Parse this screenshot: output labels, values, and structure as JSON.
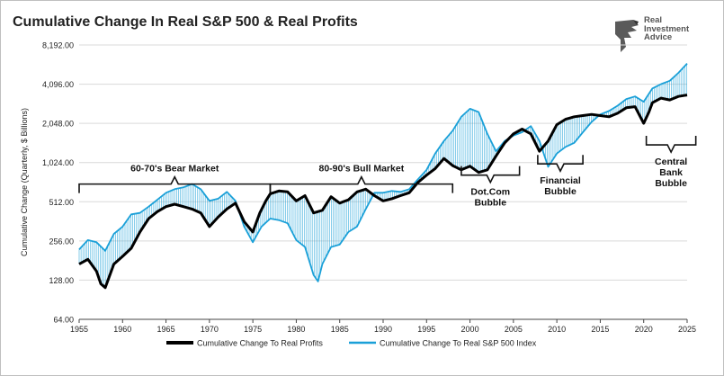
{
  "title": "Cumulative Change In Real S&P 500 & Real Profits",
  "logo": {
    "line1": "Real",
    "line2": "Investment",
    "line3": "Advice"
  },
  "colors": {
    "profits": "#000000",
    "sp500": "#1aa0d8",
    "fill": "#1aa0d8"
  },
  "chart_data": {
    "type": "line",
    "title": "Cumulative Change In Real S&P 500 & Real Profits",
    "xlabel": "",
    "ylabel": "Cumulative Change (Quarterly, $ Billions)",
    "yscale": "log2",
    "ylim": [
      64,
      8192
    ],
    "xlim": [
      1955,
      2025
    ],
    "yticks": [
      "8,192.00",
      "4,096.00",
      "2,048.00",
      "1,024.00",
      "512.00",
      "256.00",
      "128.00",
      "64.00"
    ],
    "ytick_values": [
      8192,
      4096,
      2048,
      1024,
      512,
      256,
      128,
      64
    ],
    "xticks": [
      "1955",
      "1960",
      "1965",
      "1970",
      "1975",
      "1980",
      "1985",
      "1990",
      "1995",
      "2000",
      "2005",
      "2010",
      "2015",
      "2020",
      "2025"
    ],
    "xtick_values": [
      1955,
      1960,
      1965,
      1970,
      1975,
      1980,
      1985,
      1990,
      1995,
      2000,
      2005,
      2010,
      2015,
      2020,
      2025
    ],
    "grid": "horizontal",
    "legend_position": "bottom",
    "series": [
      {
        "name": "Cumulative Change To Real Profits",
        "points": [
          [
            1955,
            170
          ],
          [
            1956,
            185
          ],
          [
            1957,
            150
          ],
          [
            1957.5,
            120
          ],
          [
            1958,
            112
          ],
          [
            1959,
            170
          ],
          [
            1960,
            195
          ],
          [
            1961,
            225
          ],
          [
            1962,
            300
          ],
          [
            1963,
            380
          ],
          [
            1964,
            430
          ],
          [
            1965,
            470
          ],
          [
            1966,
            490
          ],
          [
            1967,
            470
          ],
          [
            1968,
            450
          ],
          [
            1969,
            420
          ],
          [
            1970,
            330
          ],
          [
            1971,
            390
          ],
          [
            1972,
            450
          ],
          [
            1973,
            500
          ],
          [
            1974,
            360
          ],
          [
            1975,
            300
          ],
          [
            1975.8,
            420
          ],
          [
            1976.5,
            520
          ],
          [
            1977,
            590
          ],
          [
            1978,
            620
          ],
          [
            1979,
            610
          ],
          [
            1980,
            520
          ],
          [
            1981,
            570
          ],
          [
            1982,
            420
          ],
          [
            1983,
            440
          ],
          [
            1984,
            560
          ],
          [
            1985,
            500
          ],
          [
            1986,
            530
          ],
          [
            1987,
            610
          ],
          [
            1988,
            640
          ],
          [
            1989,
            570
          ],
          [
            1990,
            520
          ],
          [
            1991,
            540
          ],
          [
            1992,
            570
          ],
          [
            1993,
            600
          ],
          [
            1994,
            720
          ],
          [
            1995,
            820
          ],
          [
            1996,
            920
          ],
          [
            1997,
            1100
          ],
          [
            1998,
            970
          ],
          [
            1999,
            900
          ],
          [
            2000,
            960
          ],
          [
            2001,
            860
          ],
          [
            2002,
            900
          ],
          [
            2003,
            1150
          ],
          [
            2004,
            1450
          ],
          [
            2005,
            1700
          ],
          [
            2006,
            1850
          ],
          [
            2007,
            1700
          ],
          [
            2008,
            1250
          ],
          [
            2009,
            1500
          ],
          [
            2010,
            2000
          ],
          [
            2011,
            2200
          ],
          [
            2012,
            2300
          ],
          [
            2013,
            2350
          ],
          [
            2014,
            2400
          ],
          [
            2015,
            2350
          ],
          [
            2016,
            2300
          ],
          [
            2017,
            2450
          ],
          [
            2018,
            2700
          ],
          [
            2019,
            2750
          ],
          [
            2020,
            2050
          ],
          [
            2020.6,
            2500
          ],
          [
            2021,
            2950
          ],
          [
            2022,
            3200
          ],
          [
            2023,
            3100
          ],
          [
            2024,
            3300
          ],
          [
            2025,
            3380
          ]
        ]
      },
      {
        "name": "Cumulative Change To Real S&P 500 Index",
        "points": [
          [
            1955,
            220
          ],
          [
            1956,
            260
          ],
          [
            1957,
            250
          ],
          [
            1958,
            215
          ],
          [
            1959,
            290
          ],
          [
            1960,
            330
          ],
          [
            1961,
            410
          ],
          [
            1962,
            420
          ],
          [
            1963,
            470
          ],
          [
            1964,
            530
          ],
          [
            1965,
            600
          ],
          [
            1966,
            640
          ],
          [
            1967,
            660
          ],
          [
            1968,
            700
          ],
          [
            1969,
            640
          ],
          [
            1970,
            520
          ],
          [
            1971,
            540
          ],
          [
            1972,
            610
          ],
          [
            1973,
            520
          ],
          [
            1974,
            330
          ],
          [
            1975,
            250
          ],
          [
            1976,
            330
          ],
          [
            1977,
            380
          ],
          [
            1978,
            370
          ],
          [
            1979,
            350
          ],
          [
            1980,
            260
          ],
          [
            1981,
            230
          ],
          [
            1982,
            140
          ],
          [
            1982.5,
            125
          ],
          [
            1983,
            170
          ],
          [
            1984,
            230
          ],
          [
            1985,
            240
          ],
          [
            1986,
            300
          ],
          [
            1987,
            330
          ],
          [
            1988,
            450
          ],
          [
            1989,
            600
          ],
          [
            1990,
            600
          ],
          [
            1991,
            620
          ],
          [
            1992,
            610
          ],
          [
            1993,
            640
          ],
          [
            1994,
            760
          ],
          [
            1995,
            900
          ],
          [
            1996,
            1200
          ],
          [
            1997,
            1500
          ],
          [
            1998,
            1800
          ],
          [
            1999,
            2300
          ],
          [
            2000,
            2650
          ],
          [
            2001,
            2500
          ],
          [
            2002,
            1700
          ],
          [
            2003,
            1250
          ],
          [
            2004,
            1500
          ],
          [
            2005,
            1650
          ],
          [
            2006,
            1750
          ],
          [
            2007,
            1950
          ],
          [
            2008,
            1500
          ],
          [
            2009,
            950
          ],
          [
            2010,
            1200
          ],
          [
            2011,
            1350
          ],
          [
            2012,
            1450
          ],
          [
            2013,
            1750
          ],
          [
            2014,
            2100
          ],
          [
            2015,
            2400
          ],
          [
            2016,
            2550
          ],
          [
            2017,
            2800
          ],
          [
            2018,
            3150
          ],
          [
            2019,
            3300
          ],
          [
            2020,
            3000
          ],
          [
            2021,
            3800
          ],
          [
            2022,
            4100
          ],
          [
            2023,
            4350
          ],
          [
            2024,
            5000
          ],
          [
            2025,
            5900
          ]
        ]
      }
    ],
    "annotations": [
      {
        "label": "60-70's Bear Market",
        "range": [
          1955,
          1977
        ],
        "bracket": "top",
        "level": 700
      },
      {
        "label": "80-90's Bull Market",
        "range": [
          1977,
          1998
        ],
        "bracket": "top",
        "level": 700
      },
      {
        "label": "Dot.Com Bubble",
        "range": [
          1999,
          2005.7
        ],
        "bracket": "bottom",
        "level": 820
      },
      {
        "label": "Financial Bubble",
        "range": [
          2007.8,
          2013
        ],
        "bracket": "bottom",
        "level": 1000
      },
      {
        "label": "Central Bank Bubble",
        "range": [
          2020.3,
          2026
        ],
        "bracket": "bottom",
        "level": 1400
      }
    ]
  }
}
